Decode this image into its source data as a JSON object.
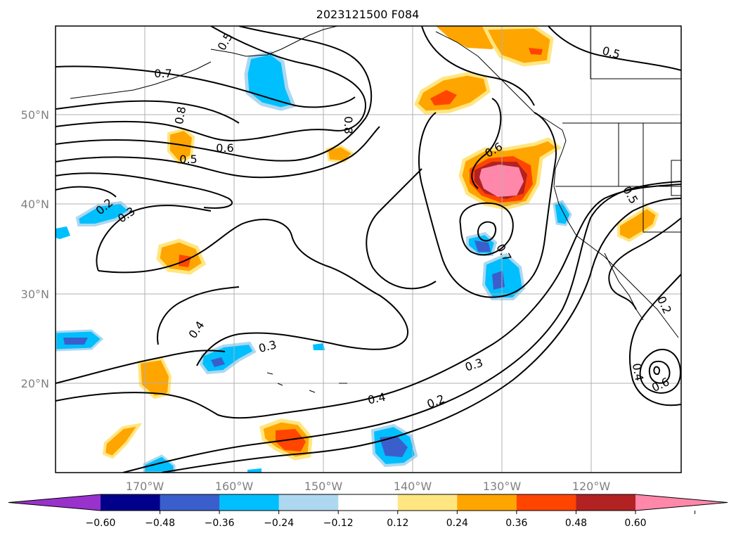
{
  "title": "2023121500 F084",
  "map": {
    "lat_ticks": [
      "50°N",
      "40°N",
      "30°N",
      "20°N"
    ],
    "lon_ticks": [
      "170°W",
      "160°W",
      "150°W",
      "140°W",
      "130°W",
      "120°W"
    ],
    "contour_labels": [
      "0.7",
      "0.8",
      "0.5",
      "0.6",
      "0.5",
      "0.8",
      "0.6",
      "0.2",
      "0.3",
      "0.4",
      "0.3",
      "0.4",
      "0.3",
      "0.2",
      "0.7",
      "0.5",
      "0.5",
      "0.2",
      "0.6",
      "0.4"
    ]
  },
  "colorbar": {
    "ticks": [
      "−0.60",
      "−0.48",
      "−0.36",
      "−0.24",
      "−0.12",
      "0.12",
      "0.24",
      "0.36",
      "0.48",
      "0.60"
    ],
    "colors": [
      "#9932cc",
      "#00008b",
      "#3a5fcd",
      "#00bfff",
      "#add8f0",
      "#ffffff",
      "#ffe680",
      "#ffa500",
      "#ff4500",
      "#b22222",
      "#ff88aa"
    ]
  }
}
